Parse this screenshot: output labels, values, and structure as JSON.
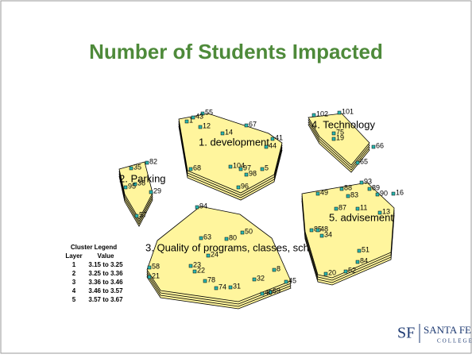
{
  "title": "Number of Students Impacted",
  "clusters": [
    {
      "label": "1. development",
      "points": [
        "55",
        "43",
        "1",
        "12",
        "14",
        "67",
        "41",
        "44",
        "68",
        "104",
        "97",
        "98",
        "5",
        "96"
      ]
    },
    {
      "label": "2. Parking",
      "points": [
        "82",
        "35",
        "36",
        "95",
        "29",
        "57"
      ]
    },
    {
      "label": "3. Quality of programs, classes, schedules",
      "points": [
        "94",
        "50",
        "63",
        "80",
        "24",
        "58",
        "21",
        "23",
        "22",
        "78",
        "32",
        "8",
        "45",
        "74",
        "31",
        "69",
        "40"
      ]
    },
    {
      "label": "4. Technology",
      "points": [
        "102",
        "101",
        "75",
        "19",
        "66",
        "65"
      ]
    },
    {
      "label": "5. advisement",
      "points": [
        "93",
        "88",
        "89",
        "49",
        "83",
        "90",
        "16",
        "87",
        "11",
        "13",
        "85",
        "48",
        "34",
        "51",
        "84",
        "52",
        "20"
      ]
    }
  ],
  "legend": {
    "title": "Cluster Legend",
    "headers": [
      "Layer",
      "Value"
    ],
    "rows": [
      [
        "1",
        "3.15 to 3.25"
      ],
      [
        "2",
        "3.25 to 3.36"
      ],
      [
        "3",
        "3.36 to 3.46"
      ],
      [
        "4",
        "3.46 to 3.57"
      ],
      [
        "5",
        "3.57 to 3.67"
      ]
    ]
  },
  "logo": {
    "mark": "SF",
    "name": "SANTA FE",
    "sub": "COLLEGE"
  }
}
